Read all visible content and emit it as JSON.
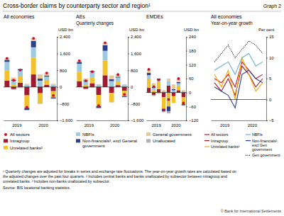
{
  "title": "Cross-border claims by counterparty sector and region¹",
  "graph_label": "Graph 2",
  "headers": [
    "Quarterly changes",
    "Year-on-year growth"
  ],
  "chart_data": [
    {
      "type": "bar",
      "stacked": true,
      "title": "All economies",
      "ylabel": "USD bn",
      "legend": "bottom",
      "grid": false,
      "categories": [
        "2019",
        null,
        null,
        null,
        "2020",
        null,
        null,
        null
      ],
      "ylim": [
        -1600,
        2400
      ],
      "yticks": [
        {
          "value": -1600,
          "label": "–1,600"
        },
        {
          "value": -800,
          "label": "–800"
        },
        0,
        800,
        {
          "value": 1600,
          "label": "1,600"
        },
        {
          "value": 2400,
          "label": "2,400"
        }
      ],
      "series": [
        {
          "name": "All sectors",
          "type": "scatter",
          "marker": "circle",
          "color": "#c8102e",
          "values": [
            1370,
            320,
            810,
            -970,
            2330,
            -210,
            670,
            -410
          ]
        },
        {
          "name": "Intragroup",
          "type": "bar",
          "color": "#9e1b32",
          "values": [
            300,
            -100,
            200,
            -400,
            600,
            -300,
            100,
            -200
          ]
        },
        {
          "name": "Unrelated banks²",
          "type": "bar",
          "color": "#f2c12e",
          "values": [
            500,
            100,
            300,
            -600,
            800,
            -500,
            200,
            -300
          ]
        },
        {
          "name": "NBFIs",
          "type": "bar",
          "color": "#9ecae1",
          "values": [
            400,
            200,
            300,
            100,
            500,
            300,
            200,
            100
          ]
        },
        {
          "name": "Non-financials³, excl General government",
          "type": "bar",
          "color": "#2b3f8c",
          "values": [
            100,
            50,
            50,
            -100,
            300,
            100,
            50,
            -50
          ]
        },
        {
          "name": "General government",
          "type": "bar",
          "color": "#e9c893",
          "values": [
            50,
            100,
            -50,
            50,
            100,
            200,
            100,
            50
          ]
        },
        {
          "name": "Unallocated",
          "type": "bar",
          "color": "#b0b0b0",
          "values": [
            20,
            -30,
            10,
            -20,
            30,
            -10,
            20,
            -10
          ]
        }
      ]
    },
    {
      "type": "bar",
      "stacked": true,
      "title": "AEs",
      "ylabel": "USD bn",
      "grid": false,
      "categories": [
        "2019",
        null,
        null,
        null,
        "2020",
        null,
        null,
        null
      ],
      "ylim": [
        -1600,
        2400
      ],
      "yticks": [
        {
          "value": -1600,
          "label": "–1,600"
        },
        {
          "value": -800,
          "label": "–800"
        },
        0,
        800,
        {
          "value": 1600,
          "label": "1,600"
        },
        {
          "value": 2400,
          "label": "2,400"
        }
      ],
      "series": [
        {
          "type": "scatter",
          "marker": "circle",
          "color": "#c8102e",
          "values": [
            1255,
            295,
            730,
            -895,
            2115,
            -190,
            595,
            -360
          ]
        },
        {
          "type": "bar",
          "color": "#9e1b32",
          "values": [
            280,
            -90,
            180,
            -380,
            560,
            -280,
            90,
            -180
          ]
        },
        {
          "type": "bar",
          "color": "#f2c12e",
          "values": [
            450,
            90,
            260,
            -540,
            700,
            -450,
            170,
            -260
          ]
        },
        {
          "type": "bar",
          "color": "#9ecae1",
          "values": [
            380,
            190,
            280,
            90,
            470,
            280,
            190,
            90
          ]
        },
        {
          "type": "bar",
          "color": "#2b3f8c",
          "values": [
            90,
            40,
            40,
            -90,
            270,
            90,
            40,
            -40
          ]
        },
        {
          "type": "bar",
          "color": "#e9c893",
          "values": [
            40,
            90,
            -40,
            40,
            90,
            180,
            90,
            40
          ]
        },
        {
          "type": "bar",
          "color": "#b0b0b0",
          "values": [
            15,
            -25,
            10,
            -15,
            25,
            -10,
            15,
            -10
          ]
        }
      ]
    },
    {
      "type": "bar",
      "stacked": true,
      "title": "EMDEs",
      "ylabel": "USD bn",
      "grid": false,
      "categories": [
        "2019",
        null,
        null,
        null,
        "2020",
        null,
        null,
        null
      ],
      "ylim": [
        -120,
        240
      ],
      "yticks": [
        {
          "value": -120,
          "label": "–120"
        },
        {
          "value": -60,
          "label": "–60"
        },
        0,
        60,
        120,
        180,
        240
      ],
      "series": [
        {
          "type": "scatter",
          "marker": "circle",
          "color": "#c8102e",
          "values": [
            100,
            25,
            55,
            -75,
            -30,
            -10,
            60,
            -45
          ]
        },
        {
          "type": "bar",
          "color": "#9e1b32",
          "values": [
            20,
            -10,
            15,
            -20,
            30,
            -15,
            10,
            -20
          ]
        },
        {
          "type": "bar",
          "color": "#f2c12e",
          "values": [
            40,
            10,
            30,
            -50,
            -60,
            -30,
            20,
            -30
          ]
        },
        {
          "type": "bar",
          "color": "#9ecae1",
          "values": [
            15,
            10,
            10,
            5,
            20,
            10,
            10,
            5
          ]
        },
        {
          "type": "bar",
          "color": "#2b3f8c",
          "values": [
            10,
            5,
            5,
            -10,
            -20,
            5,
            5,
            -5
          ]
        },
        {
          "type": "bar",
          "color": "#e9c893",
          "values": [
            10,
            15,
            -5,
            5,
            10,
            20,
            10,
            5
          ]
        },
        {
          "type": "bar",
          "color": "#b0b0b0",
          "values": [
            5,
            -5,
            0,
            -5,
            -10,
            0,
            5,
            0
          ]
        }
      ]
    },
    {
      "type": "line",
      "title": "All economies",
      "ylabel": "Per cent",
      "legend": "bottom",
      "grid": false,
      "categories": [
        "2019",
        null,
        null,
        null,
        "2020",
        null,
        null,
        null
      ],
      "ylim": [
        -5,
        15
      ],
      "yticks": [
        {
          "value": -5,
          "label": "–5"
        },
        0,
        5,
        10,
        15
      ],
      "series": [
        {
          "name": "All sectors",
          "color": "#c8102e",
          "line_style": "solid",
          "values": [
            5,
            4,
            6,
            3,
            9,
            7,
            5,
            6
          ]
        },
        {
          "name": "Intragroup",
          "color": "#9e1b32",
          "line_style": "solid",
          "values": [
            4,
            2,
            5,
            1,
            8,
            6,
            3,
            5
          ]
        },
        {
          "name": "Unrelated banks²",
          "color": "#f2a900",
          "line_style": "solid",
          "values": [
            6,
            3,
            7,
            0,
            10,
            6,
            2,
            4
          ]
        },
        {
          "name": "NBFIs",
          "color": "#6baed6",
          "line_style": "solid",
          "values": [
            7,
            8,
            9,
            6,
            10,
            11,
            8,
            9
          ]
        },
        {
          "name": "Non-financials³, excl Gen government",
          "color": "#2b3f8c",
          "line_style": "solid",
          "values": [
            3,
            2,
            1,
            -2,
            6,
            7,
            5,
            4
          ]
        },
        {
          "name": "Gen government",
          "color": "#000000",
          "line_style": "dotted",
          "values": [
            9,
            11,
            13,
            10,
            12,
            14,
            13,
            11
          ]
        }
      ]
    }
  ],
  "footnotes": [
    "¹ Quarterly changes are adjusted for breaks in series and exchange rate fluctuations. The year-on-year growth rates are calculated based on",
    "the adjusted changes over the past four quarters.  ² Includes central banks and banks unallocated by subsector between intragroup and",
    "unrelated banks.  ³ Includes non-banks unallocated by subsector."
  ],
  "source": "Source: BIS locational banking statistics.",
  "copyright": "© Bank for International Settlements"
}
